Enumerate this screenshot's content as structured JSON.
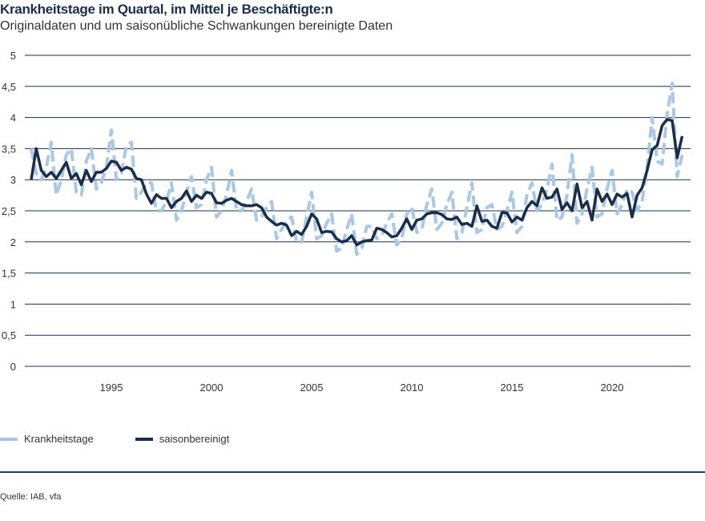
{
  "chart_data": {
    "type": "line",
    "title": "Krankheitstage im Quartal, im Mittel je Beschäftigte:n",
    "subtitle": "Originaldaten und um saisonübliche Schwankungen bereinigte Daten",
    "x_start": "1991-Q1",
    "x_end": "2023-Q3",
    "x_frequency": "quarterly",
    "x_ticks": [
      1995,
      2000,
      2005,
      2010,
      2015,
      2020
    ],
    "y_ticks": [
      "0",
      "0,5",
      "1",
      "1,5",
      "2",
      "2,5",
      "3",
      "3,5",
      "4",
      "4,5",
      "5"
    ],
    "ylim": [
      0,
      5
    ],
    "grid": "horizontal",
    "legend_position": "bottom-left",
    "series": [
      {
        "name": "Krankheitstage",
        "color": "#a9c8e6",
        "style": "dashed",
        "values": [
          3.5,
          3.1,
          3.0,
          3.2,
          3.6,
          2.75,
          3.0,
          3.4,
          3.5,
          2.8,
          2.75,
          3.3,
          3.5,
          2.85,
          2.95,
          3.2,
          3.8,
          3.0,
          3.1,
          3.55,
          3.6,
          2.7,
          2.8,
          2.95,
          2.95,
          2.5,
          2.5,
          2.65,
          2.95,
          2.35,
          2.5,
          2.8,
          3.05,
          2.55,
          2.6,
          3.0,
          3.2,
          2.4,
          2.5,
          2.75,
          3.15,
          2.5,
          2.5,
          2.65,
          2.85,
          2.35,
          2.4,
          2.55,
          2.65,
          2.05,
          2.2,
          2.35,
          2.4,
          2.0,
          2.0,
          2.4,
          2.8,
          2.05,
          2.1,
          2.3,
          2.45,
          1.85,
          1.9,
          2.2,
          2.45,
          1.8,
          1.9,
          2.25,
          2.25,
          2.05,
          2.1,
          2.3,
          2.45,
          1.95,
          2.05,
          2.45,
          2.55,
          2.15,
          2.2,
          2.6,
          2.85,
          2.2,
          2.3,
          2.6,
          2.8,
          2.05,
          2.15,
          2.55,
          2.95,
          2.15,
          2.2,
          2.55,
          2.6,
          2.2,
          2.25,
          2.5,
          2.8,
          2.15,
          2.25,
          2.75,
          2.95,
          2.5,
          2.6,
          2.85,
          3.25,
          2.35,
          2.4,
          2.75,
          3.4,
          2.3,
          2.45,
          2.85,
          3.2,
          2.4,
          2.45,
          2.85,
          3.15,
          2.45,
          2.6,
          2.85,
          2.8,
          2.5,
          2.65,
          3.2,
          4.0,
          3.3,
          3.25,
          4.05,
          4.55,
          3.05,
          3.4
        ]
      },
      {
        "name": "saisonbereinigt",
        "color": "#1a2e4a",
        "style": "solid",
        "values": [
          3.0,
          3.5,
          3.15,
          3.05,
          3.12,
          3.02,
          3.15,
          3.28,
          3.02,
          3.1,
          2.92,
          3.15,
          2.97,
          3.12,
          3.12,
          3.18,
          3.3,
          3.28,
          3.15,
          3.2,
          3.17,
          3.02,
          3.0,
          2.77,
          2.62,
          2.76,
          2.7,
          2.7,
          2.55,
          2.65,
          2.7,
          2.82,
          2.65,
          2.75,
          2.7,
          2.8,
          2.78,
          2.63,
          2.62,
          2.67,
          2.7,
          2.65,
          2.6,
          2.58,
          2.58,
          2.6,
          2.55,
          2.4,
          2.33,
          2.27,
          2.3,
          2.27,
          2.1,
          2.17,
          2.12,
          2.25,
          2.45,
          2.37,
          2.15,
          2.17,
          2.16,
          2.05,
          2.0,
          2.02,
          2.1,
          1.95,
          2.0,
          2.02,
          2.03,
          2.22,
          2.2,
          2.15,
          2.08,
          2.1,
          2.22,
          2.37,
          2.2,
          2.35,
          2.37,
          2.45,
          2.47,
          2.47,
          2.44,
          2.37,
          2.36,
          2.4,
          2.28,
          2.3,
          2.25,
          2.58,
          2.33,
          2.35,
          2.25,
          2.22,
          2.47,
          2.47,
          2.32,
          2.4,
          2.35,
          2.55,
          2.65,
          2.58,
          2.87,
          2.7,
          2.72,
          2.85,
          2.52,
          2.63,
          2.5,
          2.93,
          2.55,
          2.65,
          2.35,
          2.85,
          2.65,
          2.77,
          2.6,
          2.77,
          2.72,
          2.78,
          2.4,
          2.75,
          2.87,
          3.15,
          3.48,
          3.55,
          3.87,
          3.97,
          3.95,
          3.35,
          3.7
        ]
      }
    ],
    "source": "Quelle: IAB, vfa"
  }
}
